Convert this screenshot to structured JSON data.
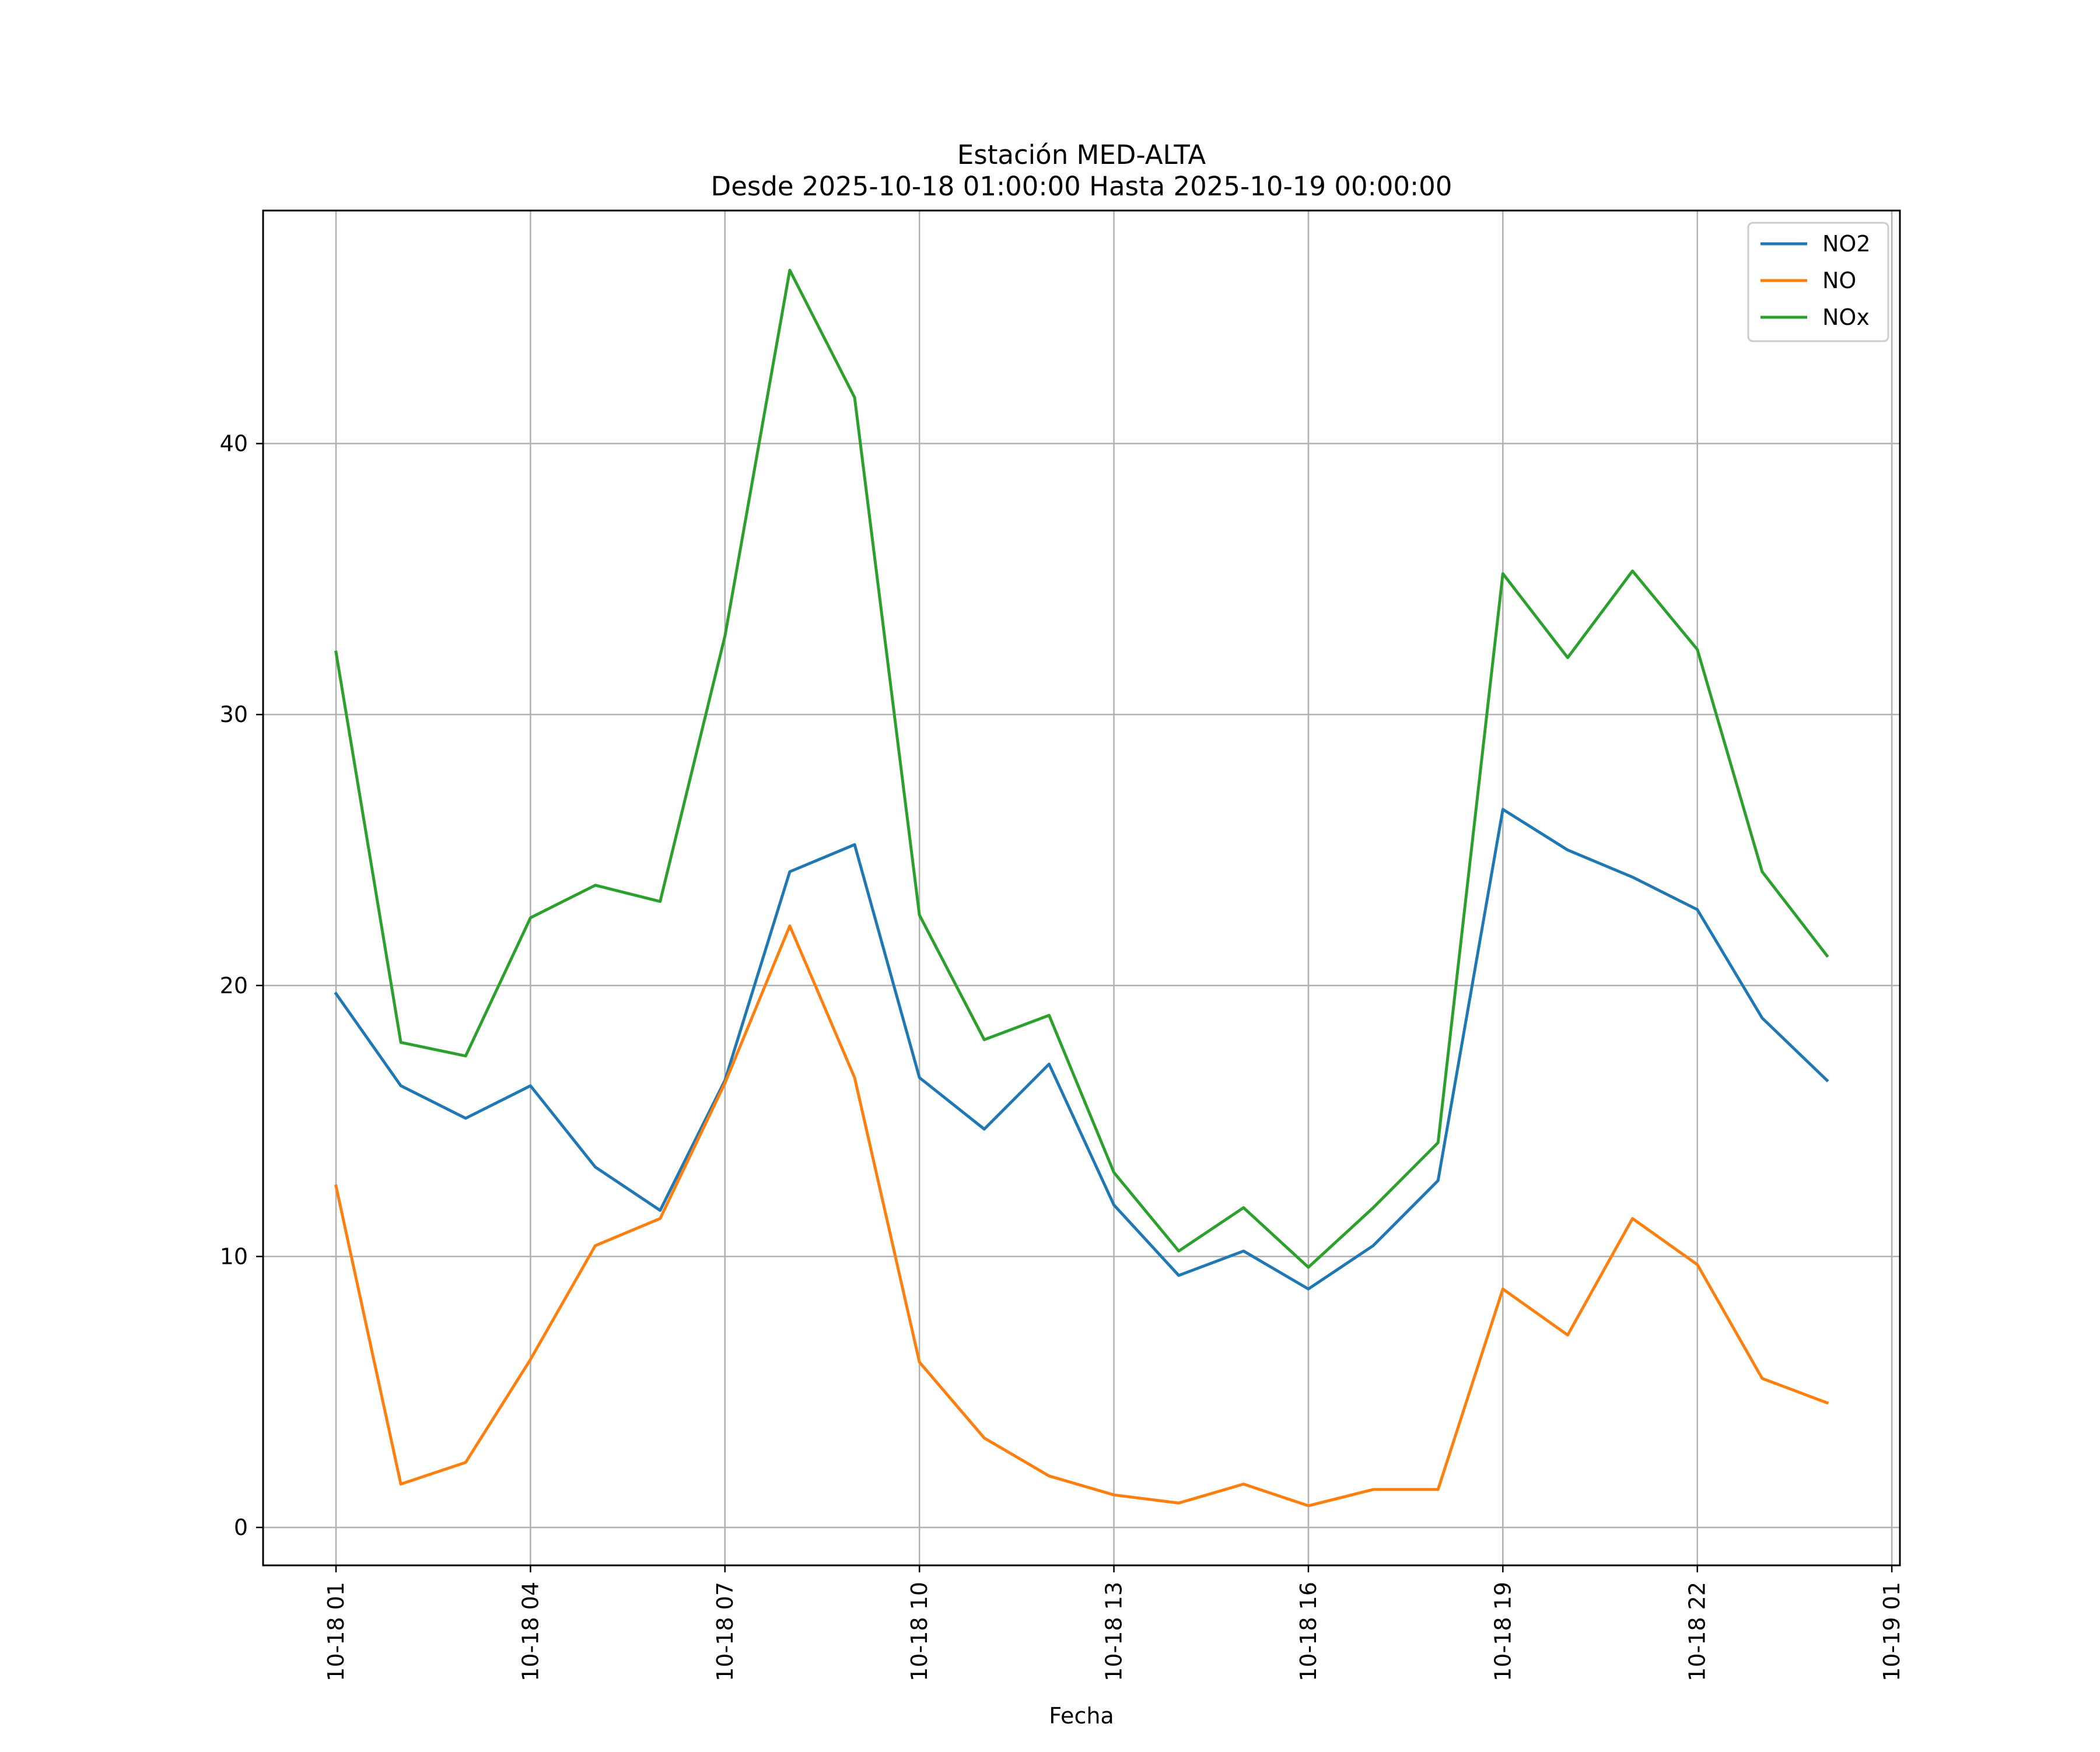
{
  "chart_data": {
    "type": "line",
    "title": "Estación MED-ALTA",
    "subtitle": "Desde 2025-10-18 01:00:00 Hasta 2025-10-19 00:00:00",
    "xlabel": "Fecha",
    "ylabel": "",
    "grid": true,
    "legend_position": "top-right",
    "x_hours": [
      0,
      1,
      2,
      3,
      4,
      5,
      6,
      7,
      8,
      9,
      10,
      11,
      12,
      13,
      14,
      15,
      16,
      17,
      18,
      19,
      20,
      21,
      22,
      23
    ],
    "xlim_hours": [
      -1.125,
      24.125
    ],
    "ylim": [
      -1.4,
      48.6
    ],
    "xticks": [
      {
        "hour": 0,
        "label": "10-18 01"
      },
      {
        "hour": 3,
        "label": "10-18 04"
      },
      {
        "hour": 6,
        "label": "10-18 07"
      },
      {
        "hour": 9,
        "label": "10-18 10"
      },
      {
        "hour": 12,
        "label": "10-18 13"
      },
      {
        "hour": 15,
        "label": "10-18 16"
      },
      {
        "hour": 18,
        "label": "10-18 19"
      },
      {
        "hour": 21,
        "label": "10-18 22"
      },
      {
        "hour": 24,
        "label": "10-19 01"
      }
    ],
    "yticks": [
      {
        "value": 0,
        "label": "0"
      },
      {
        "value": 10,
        "label": "10"
      },
      {
        "value": 20,
        "label": "20"
      },
      {
        "value": 30,
        "label": "30"
      },
      {
        "value": 40,
        "label": "40"
      }
    ],
    "series": [
      {
        "name": "NO2",
        "color": "#1f77b4",
        "values": [
          19.7,
          16.3,
          15.1,
          16.3,
          13.3,
          11.7,
          16.5,
          24.2,
          25.2,
          16.6,
          14.7,
          17.1,
          11.9,
          9.3,
          10.2,
          8.8,
          10.4,
          12.8,
          26.5,
          25.0,
          24.0,
          22.8,
          18.8,
          16.5
        ]
      },
      {
        "name": "NO",
        "color": "#ff7f0e",
        "values": [
          12.6,
          1.6,
          2.4,
          6.2,
          10.4,
          11.4,
          16.4,
          22.2,
          16.6,
          6.1,
          3.3,
          1.9,
          1.2,
          0.9,
          1.6,
          0.8,
          1.4,
          1.4,
          8.8,
          7.1,
          11.4,
          9.7,
          5.5,
          4.6
        ]
      },
      {
        "name": "NOx",
        "color": "#2ca02c",
        "values": [
          32.3,
          17.9,
          17.4,
          22.5,
          23.7,
          23.1,
          32.9,
          46.4,
          41.7,
          22.6,
          18.0,
          18.9,
          13.1,
          10.2,
          11.8,
          9.6,
          11.8,
          14.2,
          35.2,
          32.1,
          35.3,
          32.4,
          24.2,
          21.1
        ]
      }
    ]
  }
}
